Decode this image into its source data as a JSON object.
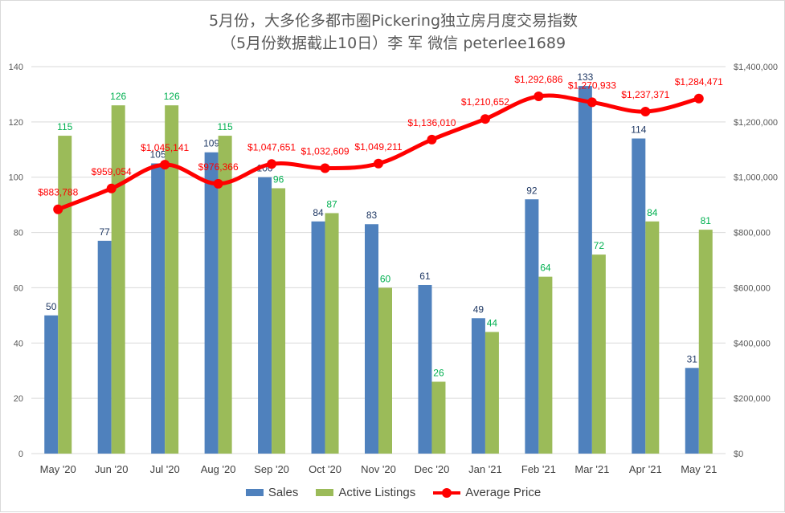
{
  "title_line1": "5月份，大多伦多都市圈Pickering独立房月度交易指数",
  "title_line2": "（5月份数据截止10日）李 军 微信 peterlee1689",
  "chart_data": {
    "type": "bar",
    "title": "5月份，大多伦多都市圈Pickering独立房月度交易指数",
    "subtitle": "（5月份数据截止10日）李 军 微信 peterlee1689",
    "categories": [
      "May '20",
      "Jun '20",
      "Jul '20",
      "Aug '20",
      "Sep '20",
      "Oct '20",
      "Nov '20",
      "Dec '20",
      "Jan '21",
      "Feb '21",
      "Mar '21",
      "Apr '21",
      "May '21"
    ],
    "series": [
      {
        "name": "Sales",
        "type": "bar",
        "axis": "left",
        "color": "#4f81bd",
        "label_color": "#1f3864",
        "values": [
          50,
          77,
          105,
          109,
          100,
          84,
          83,
          61,
          49,
          92,
          133,
          114,
          31
        ],
        "labels": [
          "50",
          "77",
          "105",
          "109",
          "100",
          "84",
          "83",
          "61",
          "49",
          "92",
          "133",
          "114",
          "31"
        ]
      },
      {
        "name": "Active Listings",
        "type": "bar",
        "axis": "left",
        "color": "#9bbb59",
        "label_color": "#00b050",
        "values": [
          115,
          126,
          126,
          115,
          96,
          87,
          60,
          26,
          44,
          64,
          72,
          84,
          81
        ],
        "labels": [
          "115",
          "126",
          "126",
          "115",
          "96",
          "87",
          "60",
          "26",
          "44",
          "64",
          "72",
          "84",
          "81"
        ]
      },
      {
        "name": "Average Price",
        "type": "line",
        "axis": "right",
        "color": "#ff0000",
        "label_color": "#ff0000",
        "values": [
          883788,
          959054,
          1045141,
          976366,
          1047651,
          1032609,
          1049211,
          1136010,
          1210652,
          1292686,
          1270933,
          1237371,
          1284471
        ],
        "labels": [
          "$883,788",
          "$959,054",
          "$1,045,141",
          "$976,366",
          "$1,047,651",
          "$1,032,609",
          "$1,049,211",
          "$1,136,010",
          "$1,210,652",
          "$1,292,686",
          "$1,270,933",
          "$1,237,371",
          "$1,284,471"
        ]
      }
    ],
    "y_left": {
      "min": 0,
      "max": 140,
      "ticks": [
        "0",
        "20",
        "40",
        "60",
        "80",
        "100",
        "120",
        "140"
      ]
    },
    "y_right": {
      "min": 0,
      "max": 1400000,
      "ticks": [
        "$0",
        "$200,000",
        "$400,000",
        "$600,000",
        "$800,000",
        "$1,000,000",
        "$1,200,000",
        "$1,400,000"
      ]
    },
    "grid": "horizontal",
    "legend_position": "bottom"
  },
  "legend": {
    "sales": "Sales",
    "listings": "Active Listings",
    "price": "Average Price"
  }
}
